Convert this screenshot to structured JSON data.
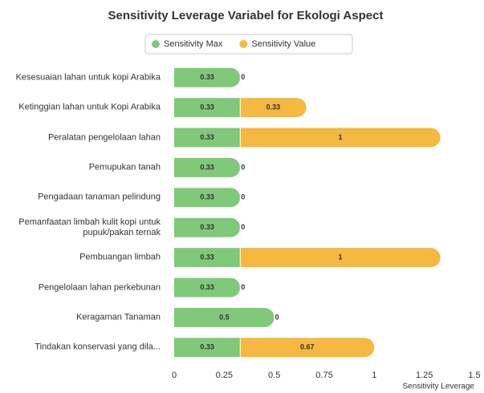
{
  "chart_data": {
    "type": "stacked-horizontal-bar",
    "title": "Sensitivity Leverage Variabel for Ekologi Aspect",
    "x_label": "Sensitivity Leverage",
    "categories": [
      "Kesesuaian lahan untuk kopi Arabika",
      "Ketinggian lahan untuk Kopi Arabika",
      "Peralatan pengelolaan lahan",
      "Pemupukan tanah",
      "Pengadaan tanaman pelindung",
      "Pemanfaatan limbah kulit kopi untuk pupuk/pakan ternak",
      "Pembuangan limbah",
      "Pengelolaan lahan perkebunan",
      "Keragaman Tanaman",
      "Tindakan konservasi yang dila..."
    ],
    "series": [
      {
        "name": "Sensitivity Max",
        "color": "#80c97a",
        "values": [
          0.33,
          0.33,
          0.33,
          0.33,
          0.33,
          0.33,
          0.33,
          0.33,
          0.5,
          0.33
        ]
      },
      {
        "name": "Sensitivity Value",
        "color": "#f5b841",
        "values": [
          0,
          0.33,
          1,
          0,
          0,
          0,
          1,
          0,
          0,
          0.67
        ]
      }
    ],
    "xlim": [
      0,
      1.5
    ],
    "xticks": [
      0,
      0.25,
      0.5,
      0.75,
      1,
      1.25,
      1.5
    ],
    "grid": false
  }
}
